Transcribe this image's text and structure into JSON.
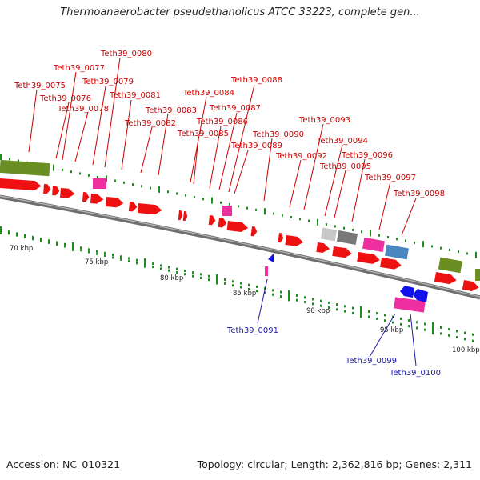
{
  "title": "Thermoanaerobacter pseudethanolicus ATCC 33223, complete gen...",
  "footer": {
    "accession": "Accession: NC_010321",
    "summary": "Topology: circular; Length: 2,362,816 bp; Genes: 2,311"
  },
  "scale": {
    "ticks": [
      "70 kbp",
      "75 kbp",
      "80 kbp",
      "85 kbp",
      "90 kbp",
      "95 kbp",
      "100 kbp"
    ]
  },
  "genes": {
    "forward": [
      "Teth39_0075",
      "Teth39_0076",
      "Teth39_0077",
      "Teth39_0078",
      "Teth39_0079",
      "Teth39_0080",
      "Teth39_0081",
      "Teth39_0082",
      "Teth39_0083",
      "Teth39_0084",
      "Teth39_0085",
      "Teth39_0086",
      "Teth39_0087",
      "Teth39_0088",
      "Teth39_0089",
      "Teth39_0090",
      "Teth39_0092",
      "Teth39_0093",
      "Teth39_0094",
      "Teth39_0095",
      "Teth39_0096",
      "Teth39_0097",
      "Teth39_0098"
    ],
    "reverse": [
      "Teth39_0091",
      "Teth39_0099",
      "Teth39_0100"
    ]
  },
  "colors": {
    "cds": "#ee1111",
    "cds_reverse": "#1111ee",
    "pink": "#ee2fa0",
    "olive": "#6b8e23",
    "steel": "#4a86c0",
    "gray": "#777777",
    "light_gray": "#c8c8c8",
    "tick_green": "#1a8f1a",
    "backbone": "#7a7a7a"
  }
}
